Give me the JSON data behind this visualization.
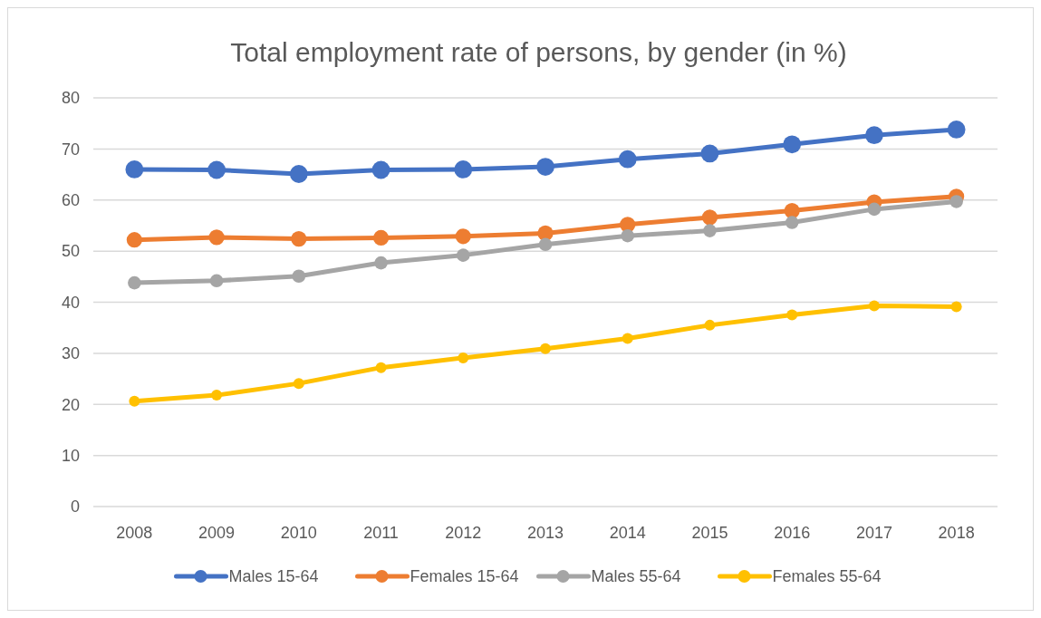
{
  "chart_data": {
    "type": "line",
    "title": "Total employment rate of persons, by gender (in %)",
    "categories": [
      "2008",
      "2009",
      "2010",
      "2011",
      "2012",
      "2013",
      "2014",
      "2015",
      "2016",
      "2017",
      "2018"
    ],
    "series": [
      {
        "name": "Males 15-64",
        "color": "#4472c4",
        "values": [
          66.0,
          65.9,
          65.1,
          65.9,
          66.0,
          66.5,
          68.0,
          69.1,
          70.9,
          72.7,
          73.8
        ]
      },
      {
        "name": "Females 15-64",
        "color": "#ed7d31",
        "values": [
          52.2,
          52.7,
          52.4,
          52.6,
          52.9,
          53.5,
          55.2,
          56.6,
          57.9,
          59.6,
          60.7
        ]
      },
      {
        "name": "Males 55-64",
        "color": "#a5a5a5",
        "values": [
          43.8,
          44.2,
          45.1,
          47.7,
          49.2,
          51.3,
          53.0,
          54.0,
          55.6,
          58.2,
          59.7
        ]
      },
      {
        "name": "Females 55-64",
        "color": "#ffc000",
        "values": [
          20.6,
          21.8,
          24.1,
          27.2,
          29.1,
          30.9,
          32.9,
          35.5,
          37.5,
          39.3,
          39.1
        ]
      }
    ],
    "ylim": [
      0,
      80
    ],
    "yticks": [
      0,
      10,
      20,
      30,
      40,
      50,
      60,
      70,
      80
    ],
    "grid": "y",
    "legend": "bottom",
    "marker": "circle",
    "line_style": "solid"
  }
}
